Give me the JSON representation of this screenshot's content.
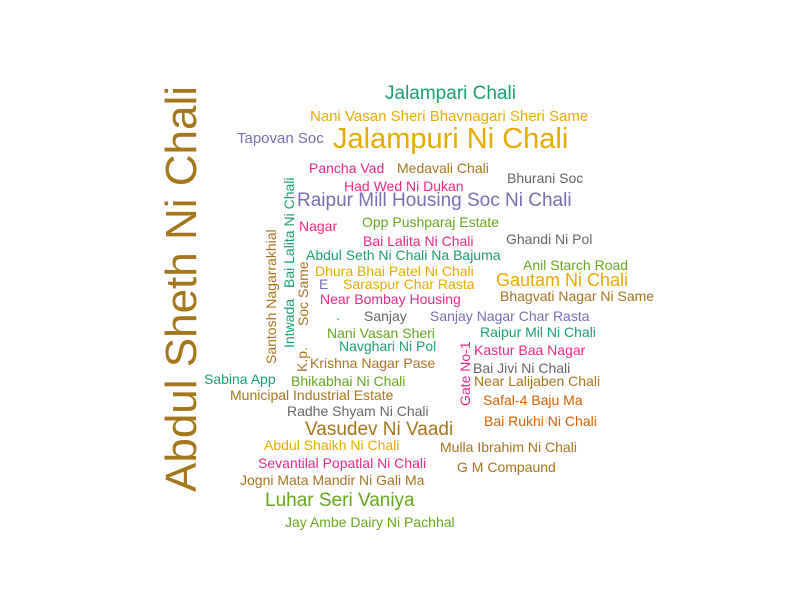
{
  "palette": {
    "brown": "#A6761D",
    "teal": "#1B9E77",
    "gold": "#E6AB02",
    "purple": "#7570B3",
    "pink": "#E7298A",
    "green": "#66A61E",
    "gray": "#666666",
    "orange": "#D95F02"
  },
  "words": [
    {
      "text": "Abdul Sheth Ni Chali",
      "color": "brown",
      "orientation": "vertical"
    },
    {
      "text": "Jalampari Chali",
      "color": "teal",
      "orientation": "horizontal"
    },
    {
      "text": "Nani Vasan Sheri Bhavnagari Sheri Same",
      "color": "gold",
      "orientation": "horizontal"
    },
    {
      "text": "Tapovan Soc",
      "color": "purple",
      "orientation": "horizontal"
    },
    {
      "text": "Jalampuri Ni Chali",
      "color": "gold",
      "orientation": "horizontal"
    },
    {
      "text": "Pancha Vad",
      "color": "pink",
      "orientation": "horizontal"
    },
    {
      "text": "Medavali Chali",
      "color": "brown",
      "orientation": "horizontal"
    },
    {
      "text": "Bhurani Soc",
      "color": "gray",
      "orientation": "horizontal"
    },
    {
      "text": "Had Wed Ni Dukan",
      "color": "pink",
      "orientation": "horizontal"
    },
    {
      "text": "Raipur Mill Housing Soc Ni Chali",
      "color": "purple",
      "orientation": "horizontal"
    },
    {
      "text": "Nagar",
      "color": "pink",
      "orientation": "horizontal"
    },
    {
      "text": "Opp Pushparaj Estate",
      "color": "green",
      "orientation": "horizontal"
    },
    {
      "text": "Bai Lalita Ni Chali",
      "color": "pink",
      "orientation": "horizontal"
    },
    {
      "text": "Ghandi Ni Pol",
      "color": "gray",
      "orientation": "horizontal"
    },
    {
      "text": "Abdul Seth Ni Chali Na Bajuma",
      "color": "teal",
      "orientation": "horizontal"
    },
    {
      "text": "Anil Starch Road",
      "color": "green",
      "orientation": "horizontal"
    },
    {
      "text": "Dhura Bhai Patel Ni Chali",
      "color": "gold",
      "orientation": "horizontal"
    },
    {
      "text": "Gautam Ni Chali",
      "color": "gold",
      "orientation": "horizontal"
    },
    {
      "text": "E",
      "color": "purple",
      "orientation": "horizontal"
    },
    {
      "text": "Saraspur Char Rasta",
      "color": "gold",
      "orientation": "horizontal"
    },
    {
      "text": "Bhagvati Nagar Ni Same",
      "color": "brown",
      "orientation": "horizontal"
    },
    {
      "text": "Near Bombay Housing",
      "color": "pink",
      "orientation": "horizontal"
    },
    {
      "text": ".",
      "color": "teal",
      "orientation": "horizontal"
    },
    {
      "text": "Sanjay",
      "color": "gray",
      "orientation": "horizontal"
    },
    {
      "text": "Sanjay Nagar Char Rasta",
      "color": "purple",
      "orientation": "horizontal"
    },
    {
      "text": "Nani Vasan Sheri",
      "color": "green",
      "orientation": "horizontal"
    },
    {
      "text": "Raipur Mil Ni Chali",
      "color": "teal",
      "orientation": "horizontal"
    },
    {
      "text": "Navghari Ni Pol",
      "color": "teal",
      "orientation": "horizontal"
    },
    {
      "text": "Kastur Baa Nagar",
      "color": "pink",
      "orientation": "horizontal"
    },
    {
      "text": "Krishna Nagar Pase",
      "color": "brown",
      "orientation": "horizontal"
    },
    {
      "text": "Bai Jivi Ni Chali",
      "color": "gray",
      "orientation": "horizontal"
    },
    {
      "text": "Sabina App",
      "color": "teal",
      "orientation": "horizontal"
    },
    {
      "text": "Bhikabhai Ni Chali",
      "color": "green",
      "orientation": "horizontal"
    },
    {
      "text": "Near Lalijaben Chali",
      "color": "brown",
      "orientation": "horizontal"
    },
    {
      "text": "Municipal Industrial Estate",
      "color": "brown",
      "orientation": "horizontal"
    },
    {
      "text": "Safal-4 Baju Ma",
      "color": "orange",
      "orientation": "horizontal"
    },
    {
      "text": "Radhe Shyam Ni Chali",
      "color": "gray",
      "orientation": "horizontal"
    },
    {
      "text": "Bai Rukhi Ni Chali",
      "color": "orange",
      "orientation": "horizontal"
    },
    {
      "text": "Vasudev Ni Vaadi",
      "color": "brown",
      "orientation": "horizontal"
    },
    {
      "text": "Abdul Shaikh Ni Chali",
      "color": "gold",
      "orientation": "horizontal"
    },
    {
      "text": "Mulla Ibrahim Ni Chali",
      "color": "brown",
      "orientation": "horizontal"
    },
    {
      "text": "Sevantilal Popatlal Ni Chali",
      "color": "pink",
      "orientation": "horizontal"
    },
    {
      "text": "G M Compaund",
      "color": "brown",
      "orientation": "horizontal"
    },
    {
      "text": "Jogni Mata Mandir Ni Gali Ma",
      "color": "brown",
      "orientation": "horizontal"
    },
    {
      "text": "Luhar Seri Vaniya",
      "color": "green",
      "orientation": "horizontal"
    },
    {
      "text": "Jay Ambe Dairy Ni Pachhal",
      "color": "green",
      "orientation": "horizontal"
    },
    {
      "text": "Santosh Nagarrakhial",
      "color": "brown",
      "orientation": "vertical"
    },
    {
      "text": "Intwada",
      "color": "teal",
      "orientation": "vertical"
    },
    {
      "text": "Bai Lalita Ni Chali",
      "color": "teal",
      "orientation": "vertical"
    },
    {
      "text": "Soc Same",
      "color": "brown",
      "orientation": "vertical"
    },
    {
      "text": "K.p.",
      "color": "brown",
      "orientation": "vertical"
    },
    {
      "text": "Gate No-1",
      "color": "pink",
      "orientation": "vertical"
    }
  ]
}
